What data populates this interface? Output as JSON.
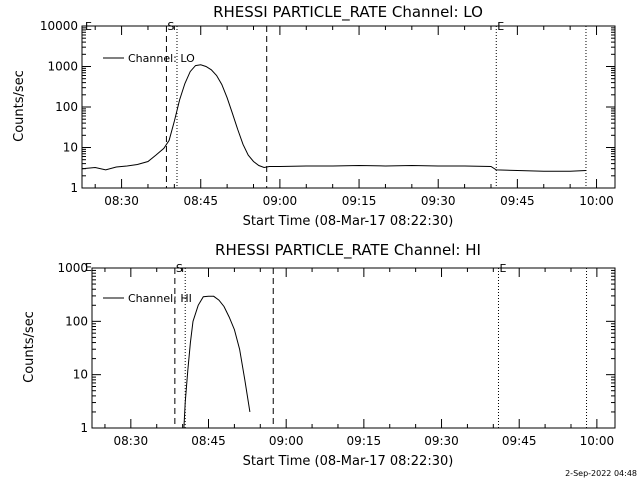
{
  "chart_data": [
    {
      "type": "line",
      "title": "RHESSI PARTICLE_RATE Channel: LO",
      "xlabel": "Start Time (08-Mar-17 08:22:30)",
      "ylabel": "Counts/sec",
      "yscale": "log",
      "ylim": [
        1,
        10000
      ],
      "yticks": [
        1,
        10,
        100,
        1000,
        10000
      ],
      "ytick_labels": [
        "1",
        "10",
        "100",
        "1000",
        "10000"
      ],
      "xlim": [
        "08:22:30",
        "10:03:30"
      ],
      "xticks": [
        "08:30",
        "08:45",
        "09:00",
        "09:15",
        "09:30",
        "09:45",
        "10:00"
      ],
      "legend": "top-left",
      "series": [
        {
          "name": "Channel: LO",
          "x": [
            "08:22:30",
            "08:25:00",
            "08:27:00",
            "08:29:00",
            "08:31:00",
            "08:33:00",
            "08:35:00",
            "08:36:30",
            "08:38:00",
            "08:39:00",
            "08:40:00",
            "08:41:00",
            "08:42:00",
            "08:43:00",
            "08:44:00",
            "08:45:00",
            "08:46:00",
            "08:47:00",
            "08:48:00",
            "08:49:00",
            "08:50:00",
            "08:51:00",
            "08:52:00",
            "08:53:00",
            "08:54:00",
            "08:55:00",
            "08:56:00",
            "08:57:00",
            "08:58:00",
            "09:00:00",
            "09:05:00",
            "09:10:00",
            "09:15:00",
            "09:20:00",
            "09:25:00",
            "09:30:00",
            "09:35:00",
            "09:40:00",
            "09:41:00",
            "09:45:00",
            "09:50:00",
            "09:55:00",
            "09:58:00"
          ],
          "values": [
            3.0,
            3.2,
            2.8,
            3.3,
            3.5,
            3.8,
            4.5,
            6.5,
            9.5,
            15,
            45,
            150,
            380,
            750,
            1050,
            1100,
            1000,
            830,
            600,
            360,
            170,
            70,
            28,
            12,
            6.5,
            4.5,
            3.6,
            3.2,
            3.4,
            3.4,
            3.5,
            3.5,
            3.6,
            3.5,
            3.6,
            3.5,
            3.5,
            3.4,
            2.8,
            2.7,
            2.6,
            2.6,
            2.7
          ]
        }
      ],
      "markers": [
        {
          "time": "08:38:30",
          "style": "dashed",
          "label": "S"
        },
        {
          "time": "08:40:30",
          "style": "dotted",
          "label": ""
        },
        {
          "time": "08:57:30",
          "style": "dashed",
          "label": ""
        },
        {
          "time": "09:41:00",
          "style": "dotted",
          "label": "E"
        },
        {
          "time": "09:58:00",
          "style": "dotted",
          "label": ""
        }
      ],
      "corner_label": "E"
    },
    {
      "type": "line",
      "title": "RHESSI PARTICLE_RATE Channel: HI",
      "xlabel": "Start Time (08-Mar-17 08:22:30)",
      "ylabel": "Counts/sec",
      "yscale": "log",
      "ylim": [
        1,
        1000
      ],
      "yticks": [
        1,
        10,
        100,
        1000
      ],
      "ytick_labels": [
        "1",
        "10",
        "100",
        "1000"
      ],
      "xlim": [
        "08:22:30",
        "10:03:30"
      ],
      "xticks": [
        "08:30",
        "08:45",
        "09:00",
        "09:15",
        "09:30",
        "09:45",
        "10:00"
      ],
      "legend": "top-left",
      "series": [
        {
          "name": "Channel: HI",
          "x": [
            "08:40:15",
            "08:40:30",
            "08:41:00",
            "08:41:30",
            "08:42:00",
            "08:43:00",
            "08:44:00",
            "08:45:00",
            "08:46:00",
            "08:47:00",
            "08:48:00",
            "08:49:00",
            "08:50:00",
            "08:51:00",
            "08:52:00",
            "08:53:00"
          ],
          "values": [
            1.0,
            3,
            12,
            40,
            100,
            200,
            290,
            295,
            295,
            250,
            190,
            120,
            70,
            30,
            8,
            2
          ]
        }
      ],
      "markers": [
        {
          "time": "08:38:30",
          "style": "dashed",
          "label": "S"
        },
        {
          "time": "08:40:30",
          "style": "dotted",
          "label": ""
        },
        {
          "time": "08:57:30",
          "style": "dashed",
          "label": ""
        },
        {
          "time": "09:41:00",
          "style": "dotted",
          "label": "E"
        },
        {
          "time": "09:58:00",
          "style": "dotted",
          "label": ""
        }
      ],
      "corner_label": "E"
    }
  ],
  "footer": {
    "timestamp": "2-Sep-2022 04:48"
  }
}
